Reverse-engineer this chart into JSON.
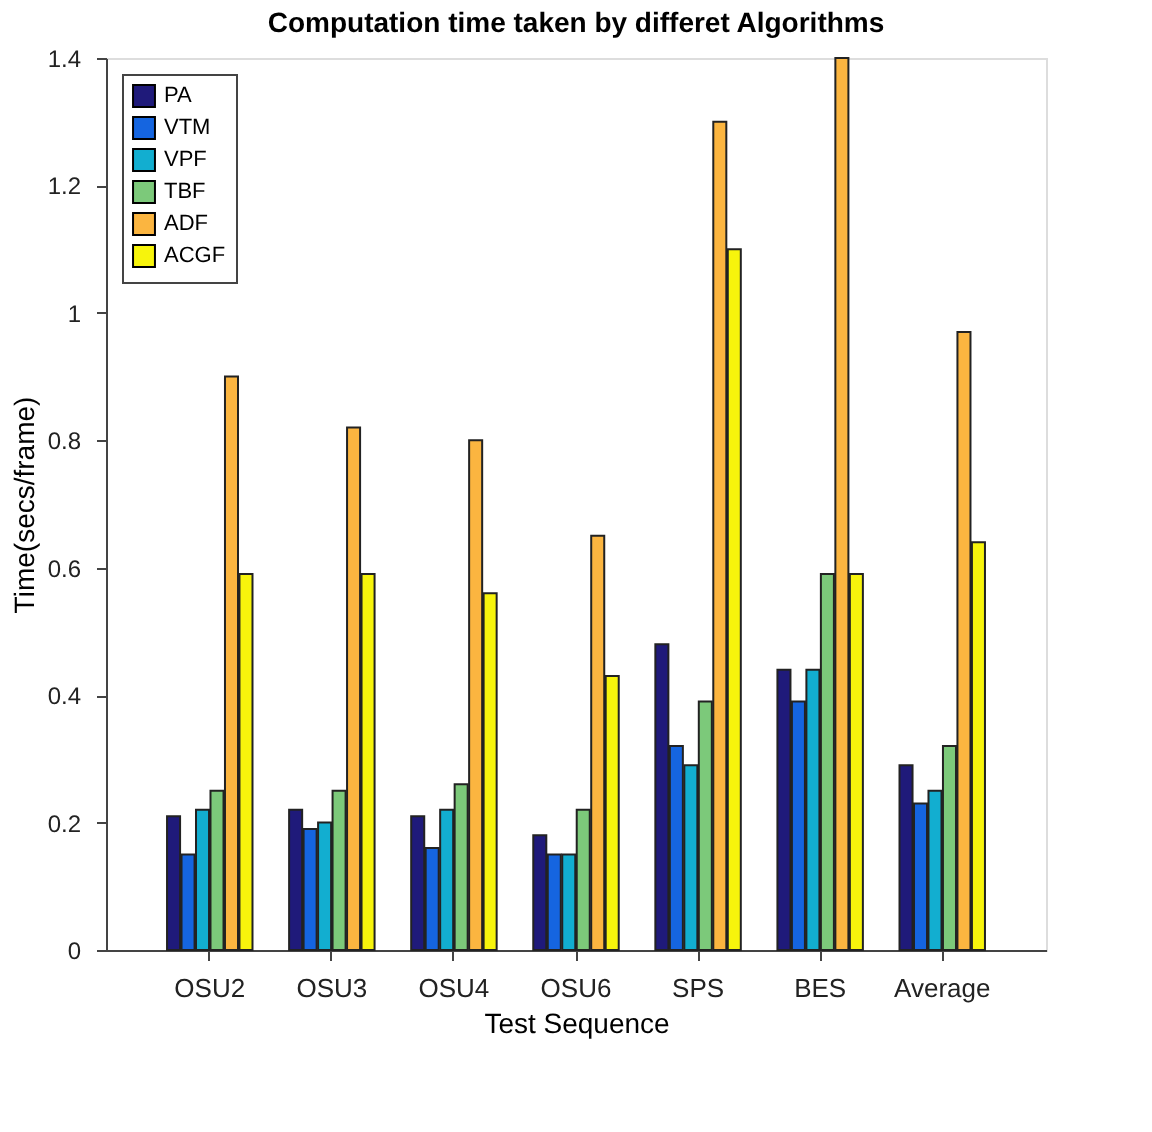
{
  "chart_data": {
    "type": "bar",
    "title": "Computation time taken by differet Algorithms",
    "xlabel": "Test Sequence",
    "ylabel": "Time(secs/frame)",
    "categories": [
      "OSU2",
      "OSU3",
      "OSU4",
      "OSU6",
      "SPS",
      "BES",
      "Average"
    ],
    "series": [
      {
        "name": "PA",
        "color": "#1f1a7a",
        "values": [
          0.21,
          0.22,
          0.21,
          0.18,
          0.48,
          0.44,
          0.29
        ]
      },
      {
        "name": "VTM",
        "color": "#1565e0",
        "values": [
          0.15,
          0.19,
          0.16,
          0.15,
          0.32,
          0.39,
          0.23
        ]
      },
      {
        "name": "VPF",
        "color": "#12aed0",
        "values": [
          0.22,
          0.2,
          0.22,
          0.15,
          0.29,
          0.44,
          0.25
        ]
      },
      {
        "name": "TBF",
        "color": "#7cc97a",
        "values": [
          0.25,
          0.25,
          0.26,
          0.22,
          0.39,
          0.59,
          0.32
        ]
      },
      {
        "name": "ADF",
        "color": "#fbb540",
        "values": [
          0.9,
          0.82,
          0.8,
          0.65,
          1.3,
          1.4,
          0.97
        ]
      },
      {
        "name": "ACGF",
        "color": "#f7f40c",
        "values": [
          0.59,
          0.59,
          0.56,
          0.43,
          1.1,
          0.59,
          0.64
        ]
      }
    ],
    "ylim": [
      0,
      1.4
    ],
    "yticks": [
      0,
      0.2,
      0.4,
      0.6,
      0.8,
      1,
      1.2,
      1.4
    ],
    "legend": "top left"
  }
}
